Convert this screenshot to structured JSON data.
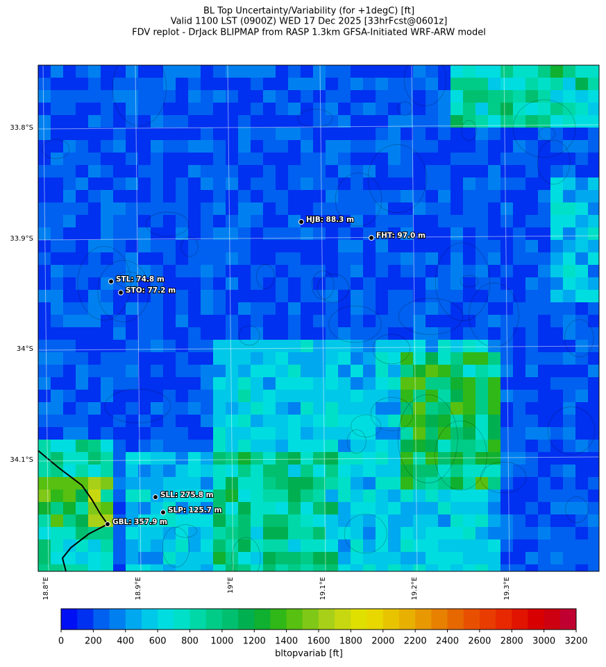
{
  "title": [
    "BL Top Uncertainty/Variability (for +1degC) [ft]",
    "Valid 1100 LST (0900Z) WED 17 Dec 2025 [33hrFcst@0601z]",
    "FDV replot - DrJack BLIPMAP from RASP 1.3km GFSA-Initiated WRF-ARW model"
  ],
  "map": {
    "lat_labels": [
      "33.8°S",
      "33.9°S",
      "34°S",
      "34.1°S"
    ],
    "lon_labels": [
      "18.8°E",
      "18.9°E",
      "19°E",
      "19.1°E",
      "19.2°E",
      "19.3°E"
    ],
    "stations": [
      "HJB: 88.3 m",
      "FHT: 97.0 m",
      "STL: 74.8 m",
      "STO: 77.2 m",
      "SLL: 275.8 m",
      "SLP: 125.7 m",
      "GBL: 357.9 m"
    ]
  },
  "colorbar": {
    "label": "bltopvariab [ft]",
    "lim": [
      0,
      3200
    ],
    "ticks": [
      0,
      200,
      400,
      600,
      800,
      1000,
      1200,
      1400,
      1600,
      1800,
      2000,
      2200,
      2400,
      2600,
      2800,
      3000,
      3200
    ],
    "colors": [
      "#0010f5",
      "#0030f0",
      "#0060f0",
      "#0080f0",
      "#00a8f0",
      "#00c8e8",
      "#00dde0",
      "#00e0c8",
      "#00d8a8",
      "#00cc88",
      "#00c070",
      "#00b050",
      "#10b030",
      "#30b818",
      "#58c010",
      "#80c818",
      "#a8d018",
      "#c8d810",
      "#e0e000",
      "#e8d800",
      "#e8c400",
      "#e8b000",
      "#e89800",
      "#e88000",
      "#e86800",
      "#e85000",
      "#e83c00",
      "#e82800",
      "#e01400",
      "#d80000",
      "#cc0010",
      "#c00030"
    ]
  }
}
